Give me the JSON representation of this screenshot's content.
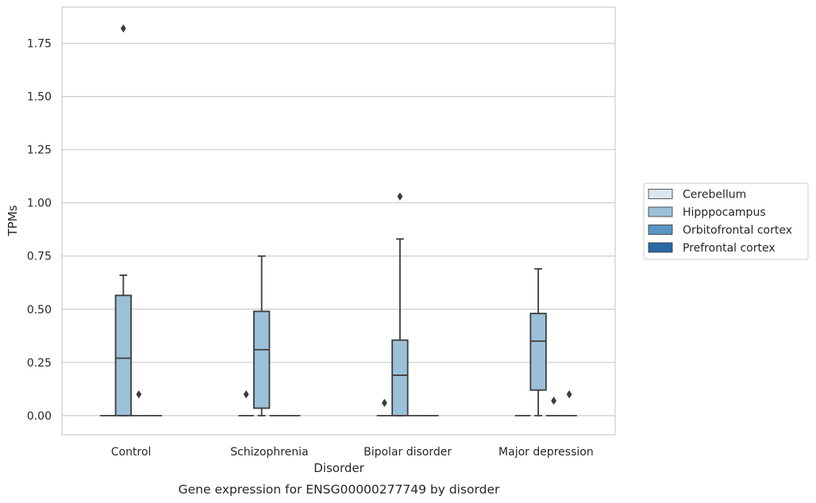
{
  "chart_data": {
    "type": "box",
    "caption": "Gene expression for ENSG00000277749 by disorder",
    "xlabel": "Disorder",
    "ylabel": "TPMs",
    "ylim": [
      -0.09,
      1.92
    ],
    "yticks": [
      0.0,
      0.25,
      0.5,
      0.75,
      1.0,
      1.25,
      1.5,
      1.75
    ],
    "ytick_labels": [
      "0.00",
      "0.25",
      "0.50",
      "0.75",
      "1.00",
      "1.25",
      "1.50",
      "1.75"
    ],
    "categories": [
      "Control",
      "Schizophrenia",
      "Bipolar disorder",
      "Major depression"
    ],
    "grid": "horizontal",
    "legend": {
      "placement": "right",
      "entries": [
        {
          "name": "Cerebellum",
          "color": "#dbe6f0"
        },
        {
          "name": "Hipppocampus",
          "color": "#9bc1d9"
        },
        {
          "name": "Orbitofrontal cortex",
          "color": "#5a96c1"
        },
        {
          "name": "Prefrontal cortex",
          "color": "#2a6aa8"
        }
      ]
    },
    "series": [
      {
        "name": "Cerebellum",
        "boxes": [
          {
            "q1": 0,
            "median": 0,
            "q3": 0,
            "whisker_low": 0,
            "whisker_high": 0,
            "outliers": []
          },
          {
            "q1": 0,
            "median": 0,
            "q3": 0,
            "whisker_low": 0,
            "whisker_high": 0,
            "outliers": []
          },
          {
            "q1": 0,
            "median": 0,
            "q3": 0,
            "whisker_low": 0,
            "whisker_high": 0,
            "outliers": []
          },
          {
            "q1": 0,
            "median": 0,
            "q3": 0,
            "whisker_low": 0,
            "whisker_high": 0,
            "outliers": []
          }
        ]
      },
      {
        "name": "Hipppocampus",
        "boxes": [
          {
            "q1": 0.0,
            "median": 0.27,
            "q3": 0.565,
            "whisker_low": 0.0,
            "whisker_high": 0.66,
            "outliers": [
              1.82
            ]
          },
          {
            "q1": 0.035,
            "median": 0.31,
            "q3": 0.49,
            "whisker_low": 0.0,
            "whisker_high": 0.75,
            "outliers": []
          },
          {
            "q1": 0.0,
            "median": 0.19,
            "q3": 0.355,
            "whisker_low": 0.0,
            "whisker_high": 0.83,
            "outliers": [
              1.03
            ]
          },
          {
            "q1": 0.12,
            "median": 0.35,
            "q3": 0.48,
            "whisker_low": 0.0,
            "whisker_high": 0.69,
            "outliers": []
          }
        ]
      },
      {
        "name": "Orbitofrontal cortex",
        "boxes": [
          {
            "q1": 0,
            "median": 0,
            "q3": 0,
            "whisker_low": 0,
            "whisker_high": 0,
            "outliers": [
              0.1
            ]
          },
          {
            "q1": 0,
            "median": 0,
            "q3": 0,
            "whisker_low": 0,
            "whisker_high": 0,
            "outliers": []
          },
          {
            "q1": 0,
            "median": 0,
            "q3": 0,
            "whisker_low": 0,
            "whisker_high": 0,
            "outliers": []
          },
          {
            "q1": 0,
            "median": 0,
            "q3": 0,
            "whisker_low": 0,
            "whisker_high": 0,
            "outliers": [
              0.07
            ]
          }
        ]
      },
      {
        "name": "Prefrontal cortex",
        "boxes": [
          {
            "q1": 0,
            "median": 0,
            "q3": 0,
            "whisker_low": 0,
            "whisker_high": 0,
            "outliers": []
          },
          {
            "q1": 0,
            "median": 0,
            "q3": 0,
            "whisker_low": 0,
            "whisker_high": 0,
            "outliers": []
          },
          {
            "q1": 0,
            "median": 0,
            "q3": 0,
            "whisker_low": 0,
            "whisker_high": 0,
            "outliers": []
          },
          {
            "q1": 0,
            "median": 0,
            "q3": 0,
            "whisker_low": 0,
            "whisker_high": 0,
            "outliers": [
              0.1
            ]
          }
        ]
      }
    ],
    "extra_outliers": [
      {
        "category": 1,
        "series": 0,
        "value": 0.1
      },
      {
        "category": 2,
        "series": 0,
        "value": 0.06
      }
    ]
  }
}
